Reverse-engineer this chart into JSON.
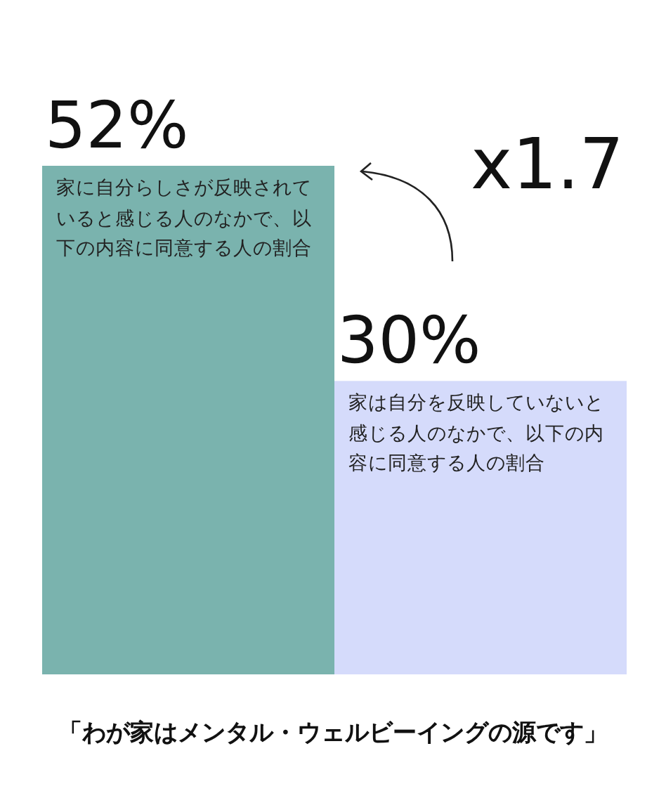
{
  "chart_data": {
    "type": "bar",
    "title": "「わが家はメンタル・ウェルビーイングの源です」",
    "categories": [
      "家に自分らしさが反映されていると感じる人のなかで、以下の内容に同意する人の割合",
      "家は自分を反映していないと感じる人のなかで、以下の内容に同意する人の割合"
    ],
    "values": [
      52,
      30
    ],
    "colors": [
      "#7ab3ae",
      "#d5dbfb"
    ],
    "value_labels": [
      "52%",
      "30%"
    ],
    "annotations": [
      "x1.7"
    ]
  }
}
